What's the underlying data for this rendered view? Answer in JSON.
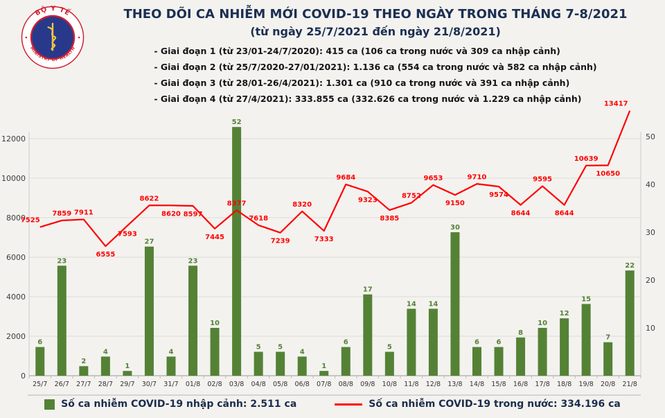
{
  "logo": {
    "top_text": "BỘ Y TẾ",
    "bottom_text": "MINISTRY OF HEALTH"
  },
  "header": {
    "title_line1": "THEO DÕI CA NHIỄM MỚI COVID-19 THEO NGÀY TRONG THÁNG 7-8/2021",
    "title_line2": "(từ ngày 25/7/2021 đến ngày 21/8/2021)",
    "bullets": [
      "- Giai đoạn 1 (từ 23/01-24/7/2020): 415 ca (106 ca trong nước và 309 ca nhập cảnh)",
      "- Giai đoạn 2 (từ 25/7/2020-27/01/2021): 1.136 ca (554 ca trong nước và 582 ca nhập cảnh)",
      "- Giai đoạn 3 (từ 28/01-26/4/2021): 1.301 ca (910 ca trong nước và 391 ca nhập cảnh)",
      "- Giai đoạn 4 (từ 27/4/2021): 333.855 ca (332.626 ca trong nước và 1.229 ca nhập cảnh)"
    ]
  },
  "chart_data": {
    "type": "combo_bar_line",
    "categories": [
      "25/7",
      "26/7",
      "27/7",
      "28/7",
      "29/7",
      "30/7",
      "31/7",
      "01/8",
      "02/8",
      "03/8",
      "04/8",
      "05/8",
      "06/8",
      "07/8",
      "08/8",
      "09/8",
      "10/8",
      "11/8",
      "12/8",
      "13/8",
      "14/8",
      "15/8",
      "16/8",
      "17/8",
      "18/8",
      "19/8",
      "20/8",
      "21/8"
    ],
    "series": [
      {
        "name": "Số ca nhiễm COVID-19 nhập cảnh",
        "chart": "bar",
        "axis": "right",
        "color": "#548235",
        "values": [
          6,
          23,
          2,
          4,
          1,
          27,
          4,
          23,
          10,
          52,
          5,
          5,
          4,
          1,
          6,
          17,
          5,
          14,
          14,
          30,
          6,
          6,
          8,
          10,
          12,
          15,
          7,
          22
        ]
      },
      {
        "name": "Số ca nhiễm COVID-19 trong nước",
        "chart": "line",
        "axis": "left",
        "color": "#ff0000",
        "values": [
          7525,
          7859,
          7911,
          6555,
          7593,
          8622,
          8620,
          8597,
          7445,
          8377,
          7618,
          7239,
          8320,
          7333,
          9684,
          9323,
          8385,
          8752,
          9653,
          9150,
          9710,
          9574,
          8644,
          9595,
          8644,
          10639,
          10650,
          13417
        ],
        "label_side": [
          "above",
          "above",
          "above",
          "below",
          "below",
          "above",
          "below",
          "below",
          "below",
          "above",
          "above",
          "below",
          "above",
          "below",
          "above",
          "below",
          "below",
          "above",
          "above",
          "below",
          "above",
          "below",
          "below",
          "above",
          "below",
          "above",
          "below",
          "above"
        ]
      }
    ],
    "left_axis": {
      "ticks": [
        0,
        2000,
        4000,
        6000,
        8000,
        10000,
        12000
      ],
      "max": 13800
    },
    "right_axis": {
      "ticks": [
        10,
        20,
        30,
        40,
        50
      ],
      "max": 56
    },
    "grid": true,
    "legend": {
      "position": "bottom",
      "items": [
        {
          "label": "Số ca nhiễm COVID-19 nhập cảnh: 2.511 ca",
          "marker": "square",
          "color": "#548235"
        },
        {
          "label": "Số ca nhiễm COVID-19 trong nước: 334.196 ca",
          "marker": "line",
          "color": "#ff0000"
        }
      ]
    }
  }
}
